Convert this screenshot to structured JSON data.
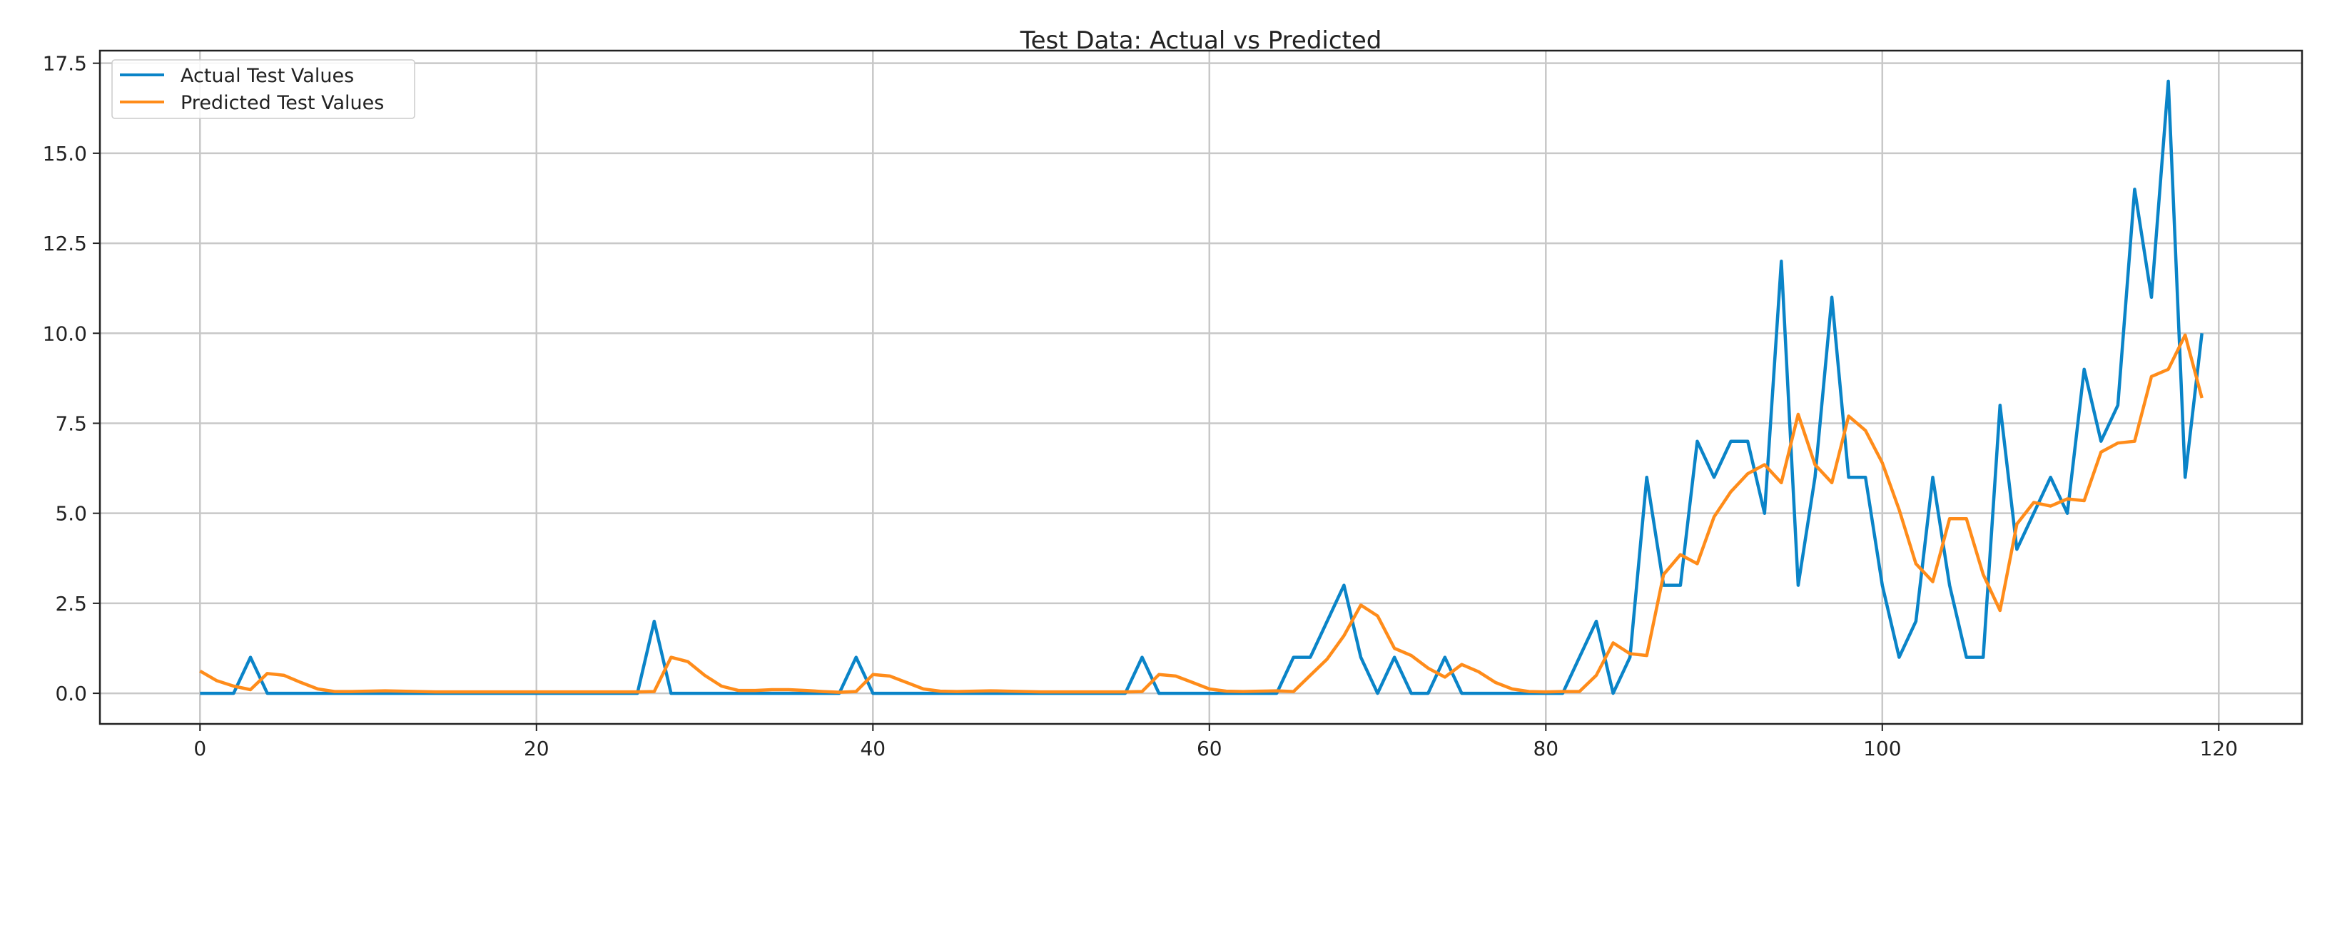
{
  "chart_data": {
    "type": "line",
    "title": "Test Data: Actual vs Predicted",
    "xlabel": "",
    "ylabel": "",
    "xlim": [
      -5.95,
      124.95
    ],
    "ylim": [
      -0.85,
      17.85
    ],
    "xticks": [
      0,
      20,
      40,
      60,
      80,
      100,
      120
    ],
    "xtick_labels": [
      "0",
      "20",
      "40",
      "60",
      "80",
      "100",
      "120"
    ],
    "yticks": [
      0,
      2.5,
      5,
      7.5,
      10,
      12.5,
      15,
      17.5
    ],
    "ytick_labels": [
      "0.0",
      "2.5",
      "5.0",
      "7.5",
      "10.0",
      "12.5",
      "15.0",
      "17.5"
    ],
    "grid": true,
    "legend_position": "top-left",
    "series": [
      {
        "name": "Actual Test Values",
        "color": "#0a84c8",
        "values": [
          0,
          0,
          0,
          1,
          0,
          0,
          0,
          0,
          0,
          0,
          0,
          0,
          0,
          0,
          0,
          0,
          0,
          0,
          0,
          0,
          0,
          0,
          0,
          0,
          0,
          0,
          0,
          2,
          0,
          0,
          0,
          0,
          0,
          0,
          0,
          0,
          0,
          0,
          0,
          1,
          0,
          0,
          0,
          0,
          0,
          0,
          0,
          0,
          0,
          0,
          0,
          0,
          0,
          0,
          0,
          0,
          1,
          0,
          0,
          0,
          0,
          0,
          0,
          0,
          0,
          1,
          1,
          2,
          3,
          1,
          0,
          1,
          0,
          0,
          1,
          0,
          0,
          0,
          0,
          0,
          0,
          0,
          1,
          2,
          0,
          1,
          6,
          3,
          3,
          7,
          6,
          7,
          7,
          5,
          12,
          3,
          6,
          11,
          6,
          6,
          3,
          1,
          2,
          6,
          3,
          1,
          1,
          8,
          4,
          5,
          6,
          5,
          9,
          7,
          8,
          14,
          11,
          17,
          6,
          10
        ]
      },
      {
        "name": "Predicted Test Values",
        "color": "#ff8c1a",
        "values": [
          0.62,
          0.35,
          0.2,
          0.1,
          0.55,
          0.5,
          0.3,
          0.12,
          0.05,
          0.05,
          0.06,
          0.07,
          0.06,
          0.05,
          0.04,
          0.04,
          0.04,
          0.04,
          0.04,
          0.04,
          0.04,
          0.04,
          0.04,
          0.04,
          0.04,
          0.04,
          0.04,
          0.05,
          1.0,
          0.88,
          0.5,
          0.2,
          0.08,
          0.08,
          0.1,
          0.1,
          0.08,
          0.05,
          0.03,
          0.05,
          0.52,
          0.48,
          0.3,
          0.12,
          0.06,
          0.05,
          0.06,
          0.07,
          0.06,
          0.05,
          0.04,
          0.04,
          0.04,
          0.04,
          0.04,
          0.04,
          0.05,
          0.52,
          0.48,
          0.3,
          0.12,
          0.06,
          0.05,
          0.06,
          0.07,
          0.05,
          0.5,
          0.95,
          1.6,
          2.45,
          2.15,
          1.25,
          1.05,
          0.7,
          0.45,
          0.8,
          0.6,
          0.3,
          0.12,
          0.05,
          0.04,
          0.05,
          0.05,
          0.5,
          1.4,
          1.1,
          1.05,
          3.3,
          3.85,
          3.6,
          4.9,
          5.6,
          6.1,
          6.35,
          5.85,
          7.75,
          6.35,
          5.85,
          7.7,
          7.3,
          6.4,
          5.1,
          3.6,
          3.1,
          4.85,
          4.85,
          3.3,
          2.3,
          4.7,
          5.3,
          5.2,
          5.4,
          5.35,
          6.7,
          6.95,
          7.0,
          8.8,
          9.0,
          9.95,
          8.2
        ]
      }
    ]
  }
}
